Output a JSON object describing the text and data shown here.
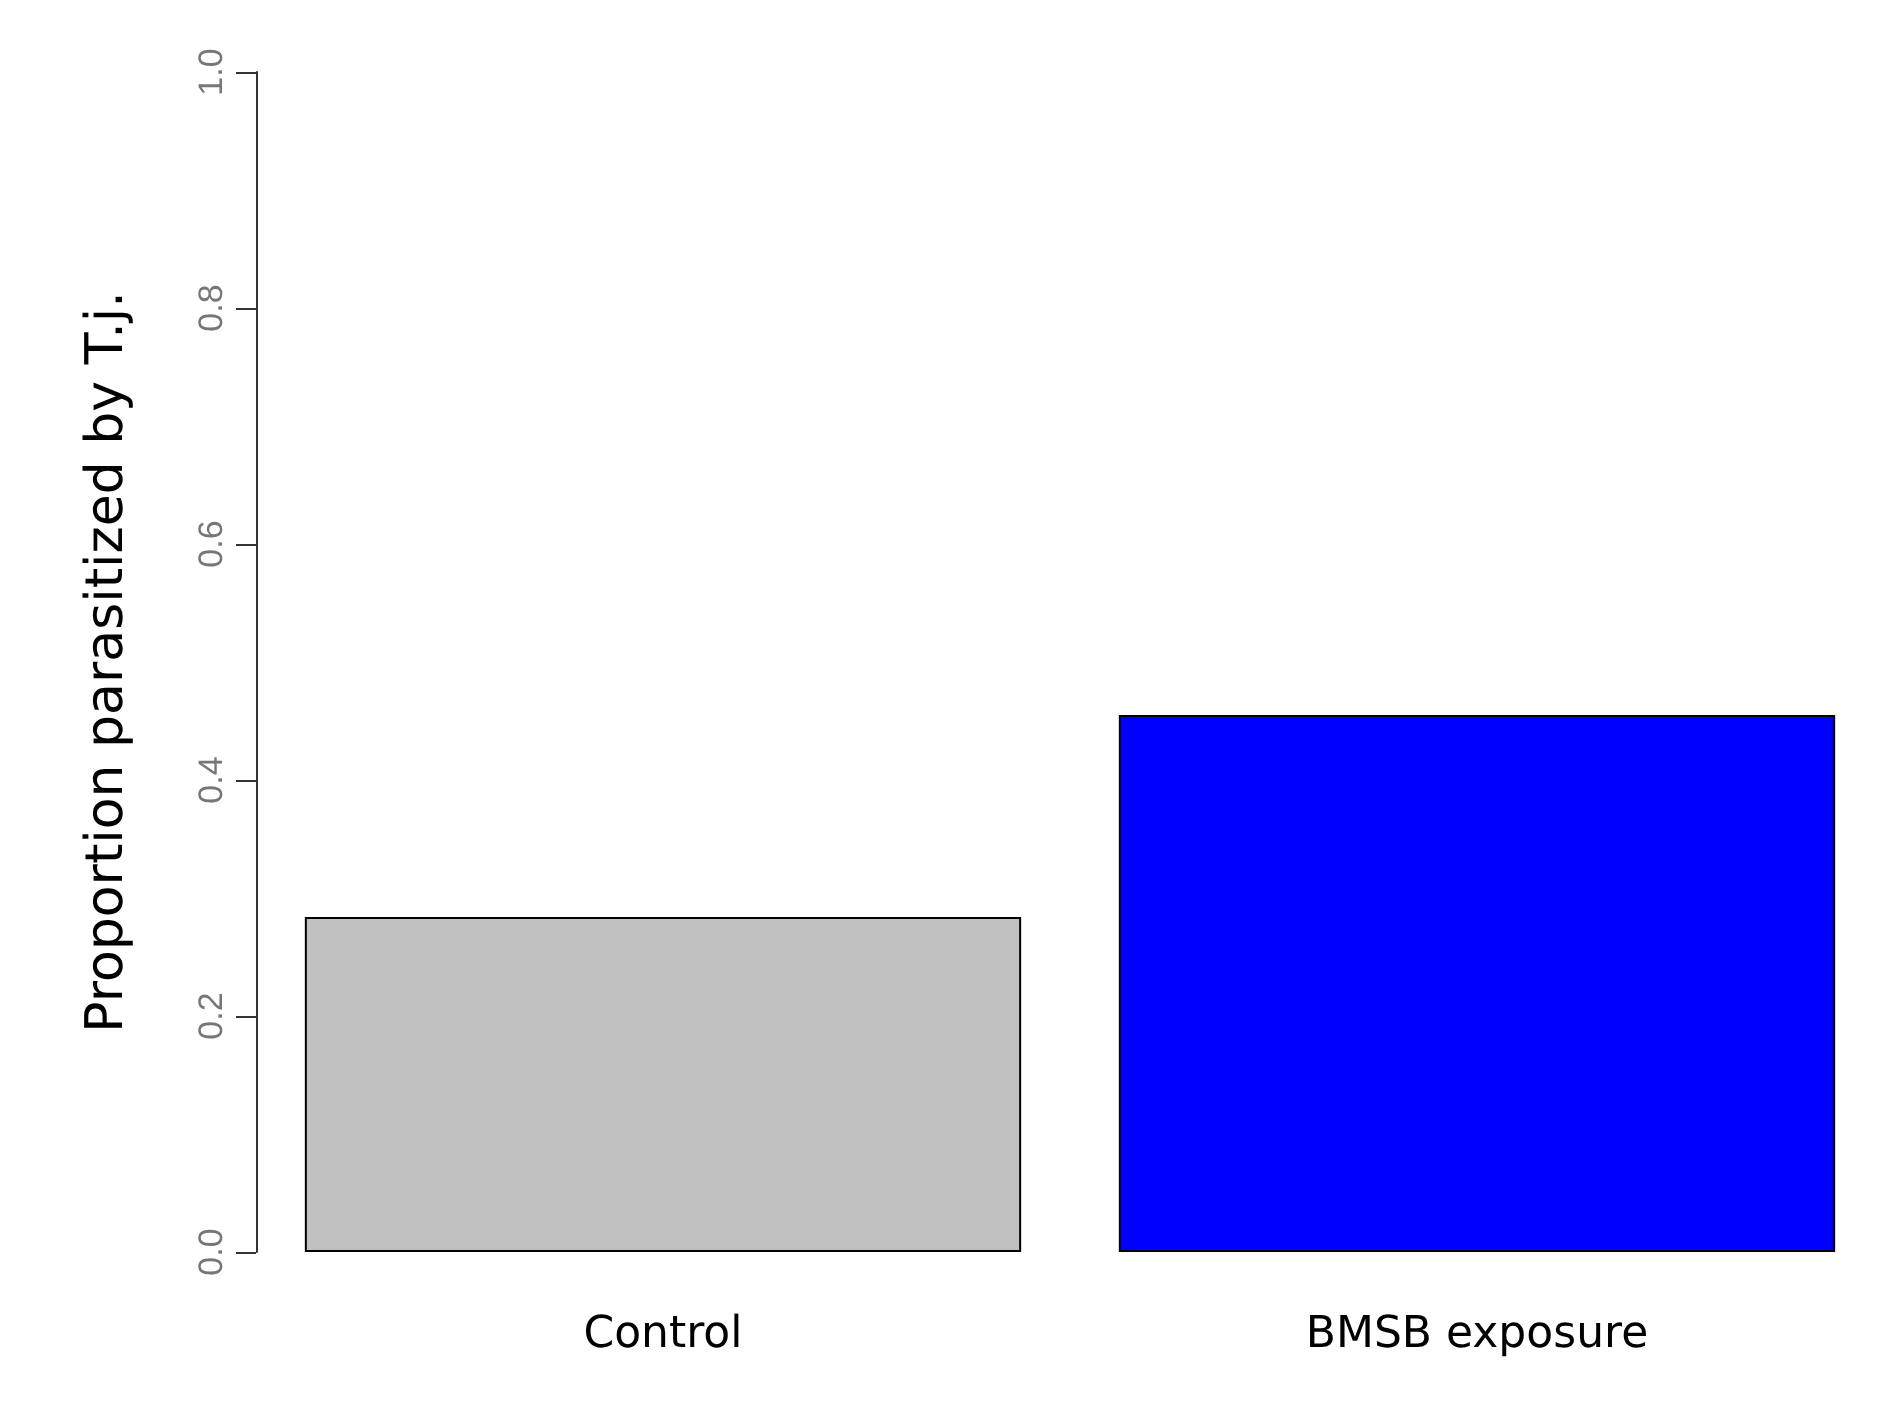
{
  "chart_data": {
    "type": "bar",
    "ylabel": "Proportion parasitized by T.j.",
    "categories": [
      "Control",
      "BMSB exposure"
    ],
    "values": [
      0.284,
      0.455
    ],
    "colors": [
      "#c0c0c0",
      "#0000ff"
    ],
    "ylim": [
      0,
      1
    ],
    "yticks": [
      {
        "value": 0,
        "label": "0.0"
      },
      {
        "value": 0.2,
        "label": "0.2"
      },
      {
        "value": 0.4,
        "label": "0.4"
      },
      {
        "value": 0.6,
        "label": "0.6"
      },
      {
        "value": 0.8,
        "label": "0.8"
      },
      {
        "value": 1,
        "label": "1.0"
      }
    ],
    "grid": false
  }
}
